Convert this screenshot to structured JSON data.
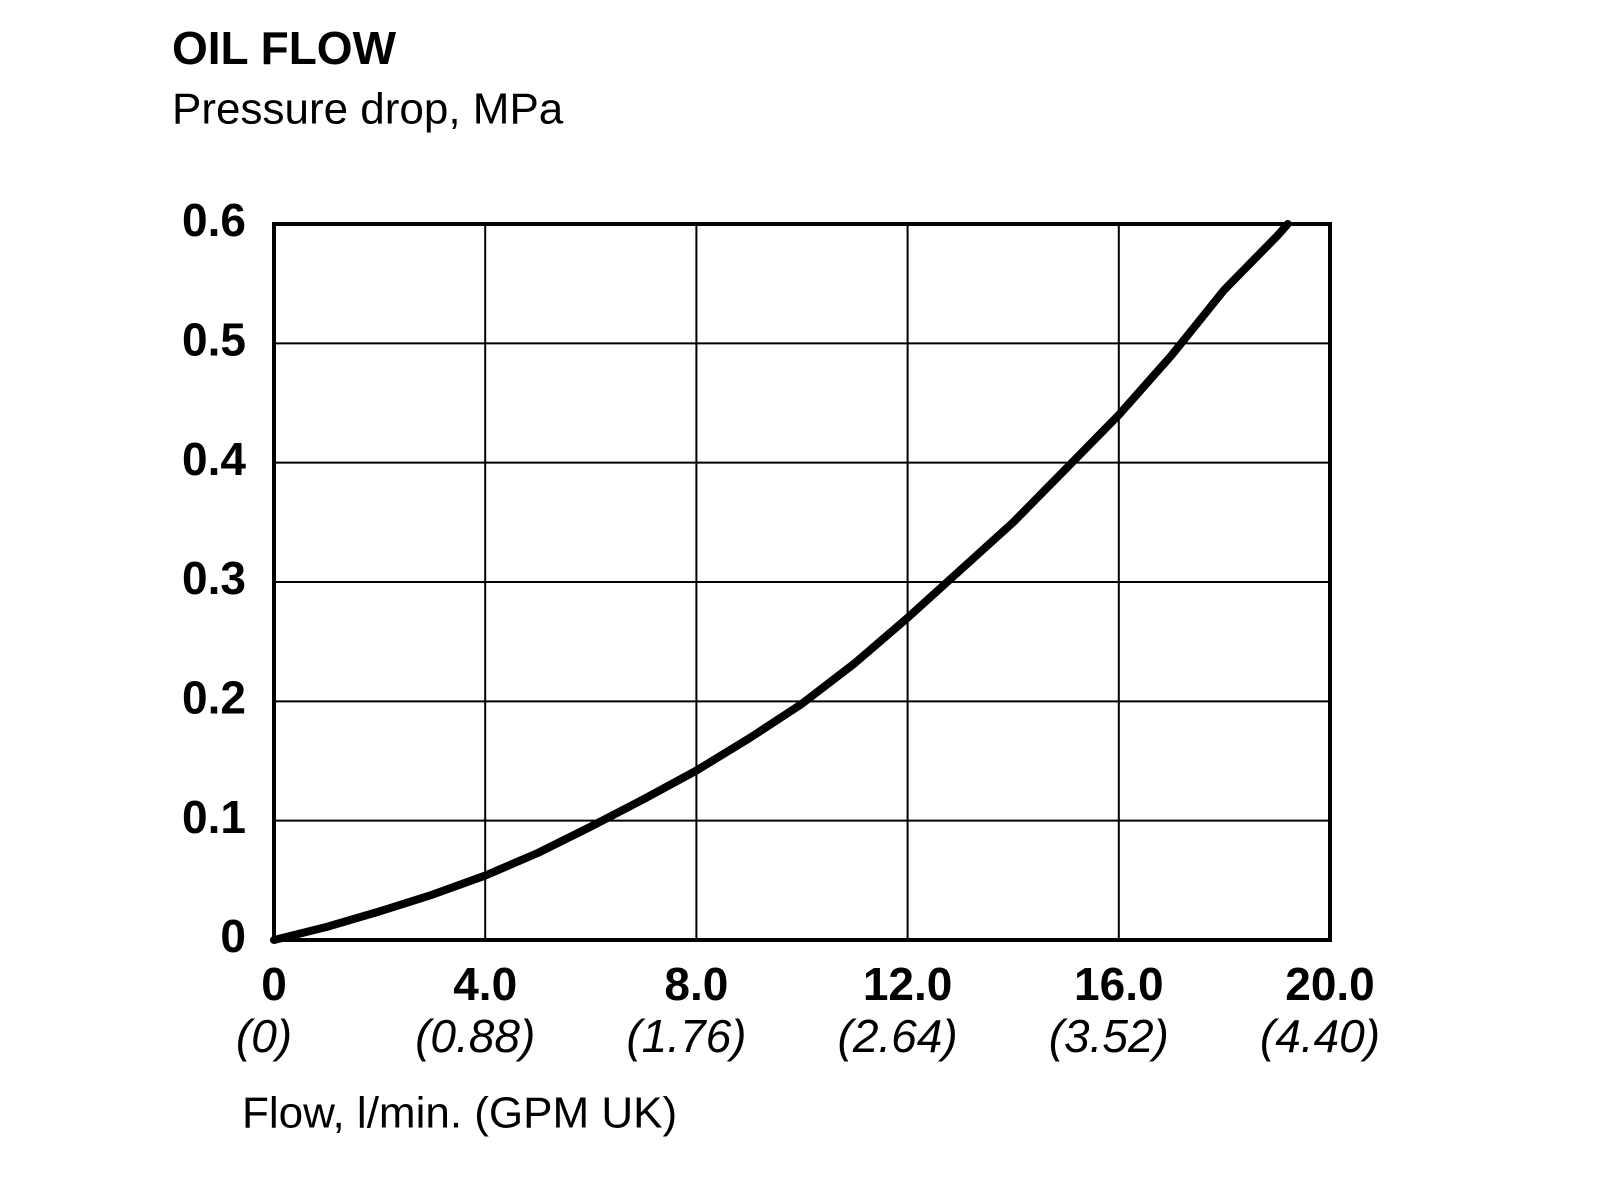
{
  "chart_data": {
    "type": "line",
    "title": "OIL FLOW",
    "subtitle": "Pressure drop, MPa",
    "x_label": "Flow, l/min. (GPM UK)",
    "x": [
      0,
      1,
      2,
      3,
      4,
      5,
      6,
      7,
      8,
      9,
      10,
      11,
      12,
      13,
      14,
      15,
      16,
      17,
      18,
      19,
      19.2
    ],
    "series": [
      {
        "color": "#000000",
        "values": [
          0,
          0.011,
          0.024,
          0.038,
          0.054,
          0.073,
          0.095,
          0.118,
          0.142,
          0.169,
          0.198,
          0.232,
          0.27,
          0.31,
          0.35,
          0.395,
          0.44,
          0.49,
          0.545,
          0.59,
          0.6
        ]
      }
    ],
    "xlim": [
      0,
      20
    ],
    "ylim": [
      0,
      0.6
    ],
    "xticks": [
      {
        "value": 0,
        "label": "0",
        "sublabel": "(0)"
      },
      {
        "value": 4,
        "label": "4.0",
        "sublabel": "(0.88)"
      },
      {
        "value": 8,
        "label": "8.0",
        "sublabel": "(1.76)"
      },
      {
        "value": 12,
        "label": "12.0",
        "sublabel": "(2.64)"
      },
      {
        "value": 16,
        "label": "16.0",
        "sublabel": "(3.52)"
      },
      {
        "value": 20,
        "label": "20.0",
        "sublabel": "(4.40)"
      }
    ],
    "yticks": [
      0,
      0.1,
      0.2,
      0.3,
      0.4,
      0.5,
      0.6
    ],
    "grid": true
  }
}
